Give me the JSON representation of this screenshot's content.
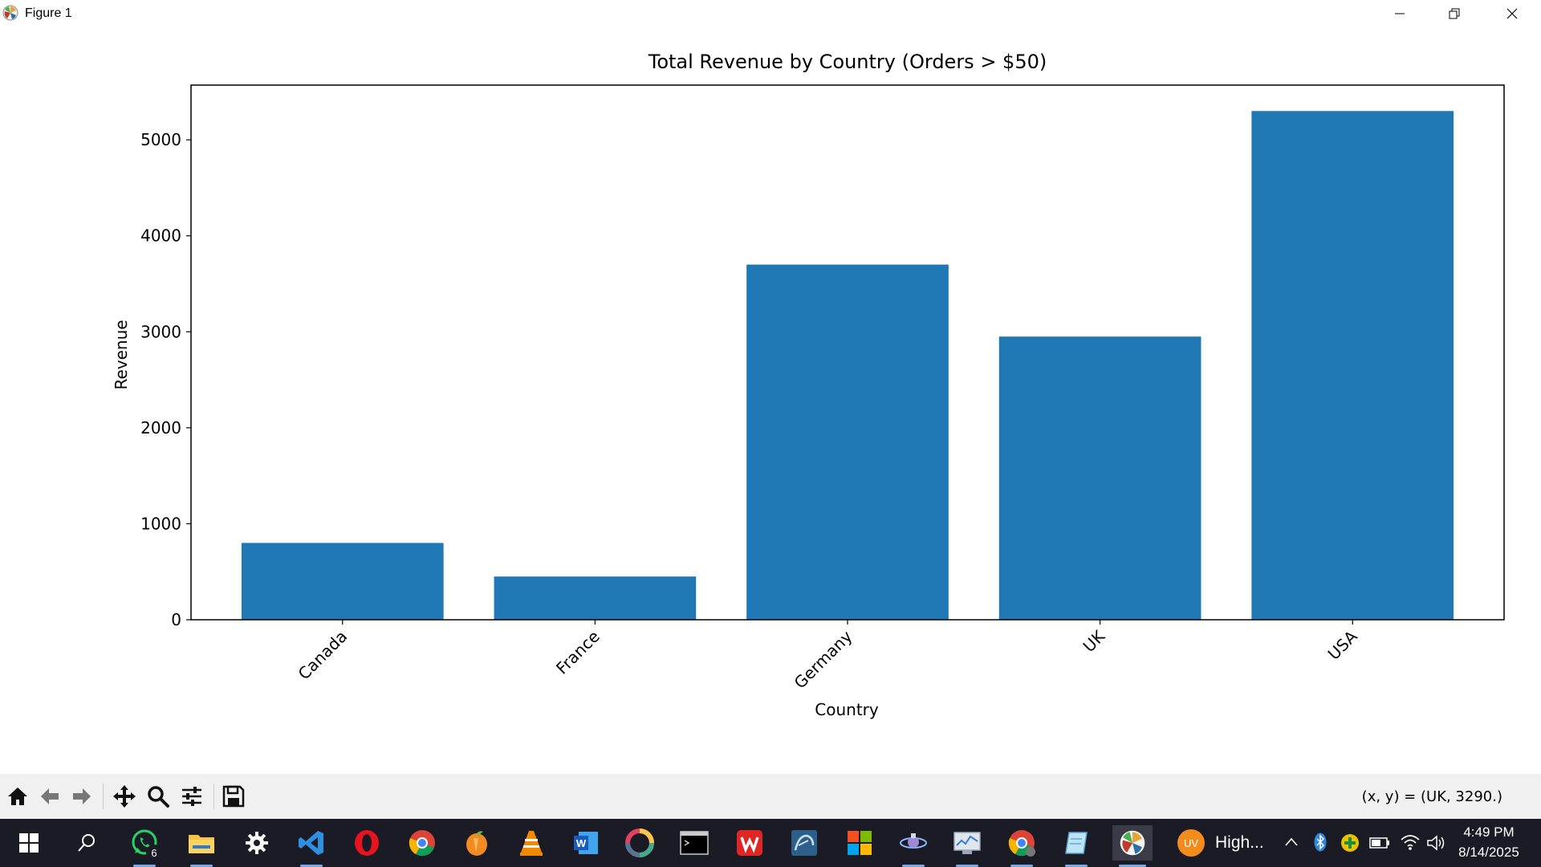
{
  "window": {
    "title": "Figure 1",
    "controls": [
      "minimize",
      "restore",
      "close"
    ]
  },
  "chart_data": {
    "type": "bar",
    "title": "Total Revenue by Country (Orders > $50)",
    "xlabel": "Country",
    "ylabel": "Revenue",
    "categories": [
      "Canada",
      "France",
      "Germany",
      "UK",
      "USA"
    ],
    "values": [
      800,
      450,
      3700,
      2950,
      5300
    ],
    "ylim": [
      0,
      5570
    ],
    "yticks": [
      0,
      1000,
      2000,
      3000,
      4000,
      5000
    ],
    "xtick_rotation_deg": 45,
    "bar_color": "#1f77b4",
    "grid": false,
    "legend": false
  },
  "toolbar": {
    "buttons": [
      "home-icon",
      "back-icon",
      "forward-icon",
      "pan-icon",
      "zoom-icon",
      "configure-subplots-icon",
      "save-icon"
    ],
    "coords_text": "(x, y) = (UK, 3290.)"
  },
  "taskbar": {
    "whatsapp_badge": "6",
    "weather_badge": "UV",
    "weather_label": "High...",
    "time": "4:49 PM",
    "date": "8/14/2025"
  },
  "colors": {
    "taskbar_bg": "#1b1b26",
    "toolbar_bg": "#f0f0f0",
    "accent": "#1f77b4"
  }
}
